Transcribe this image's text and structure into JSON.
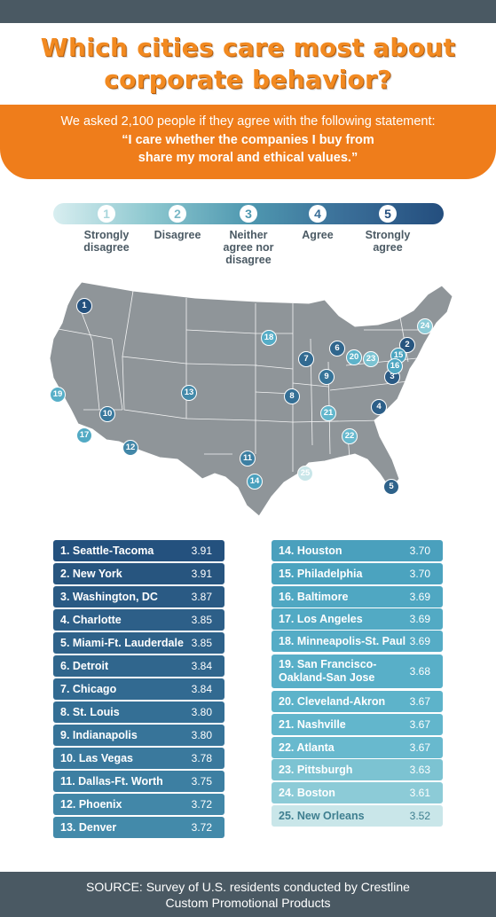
{
  "title_line1": "Which cities care most about",
  "title_line2": "corporate behavior?",
  "banner": {
    "intro": "We asked 2,100 people if they agree with the following statement:",
    "quote_line1": "“I care whether the companies I buy from",
    "quote_line2": "share my moral and ethical values.”"
  },
  "scale": [
    {
      "num": "1",
      "label": "Strongly disagree"
    },
    {
      "num": "2",
      "label": "Disagree"
    },
    {
      "num": "3",
      "label": "Neither agree nor disagree"
    },
    {
      "num": "4",
      "label": "Agree"
    },
    {
      "num": "5",
      "label": "Strongly agree"
    }
  ],
  "rankings": [
    {
      "rank": 1,
      "city": "1. Seattle-Tacoma",
      "score": "3.91",
      "color": "#24517e"
    },
    {
      "rank": 2,
      "city": "2. New York",
      "score": "3.91",
      "color": "#27557f"
    },
    {
      "rank": 3,
      "city": "3. Washington, DC",
      "score": "3.87",
      "color": "#2a5a84"
    },
    {
      "rank": 4,
      "city": "4. Charlotte",
      "score": "3.85",
      "color": "#2d5f88"
    },
    {
      "rank": 5,
      "city": "5. Miami-Ft. Lauderdale",
      "score": "3.85",
      "color": "#2e628a"
    },
    {
      "rank": 6,
      "city": "6. Detroit",
      "score": "3.84",
      "color": "#30668d"
    },
    {
      "rank": 7,
      "city": "7. Chicago",
      "score": "3.84",
      "color": "#326a91"
    },
    {
      "rank": 8,
      "city": "8. St. Louis",
      "score": "3.80",
      "color": "#346f95"
    },
    {
      "rank": 9,
      "city": "9. Indianapolis",
      "score": "3.80",
      "color": "#377499"
    },
    {
      "rank": 10,
      "city": "10. Las Vegas",
      "score": "3.78",
      "color": "#3a799d"
    },
    {
      "rank": 11,
      "city": "11. Dallas-Ft. Worth",
      "score": "3.75",
      "color": "#3d7fa2"
    },
    {
      "rank": 12,
      "city": "12. Phoenix",
      "score": "3.72",
      "color": "#4287a8"
    },
    {
      "rank": 13,
      "city": "13. Denver",
      "score": "3.72",
      "color": "#438aaa"
    },
    {
      "rank": 14,
      "city": "14. Houston",
      "score": "3.70",
      "color": "#4aa0bd"
    },
    {
      "rank": 15,
      "city": "15. Philadelphia",
      "score": "3.70",
      "color": "#4ba3bf"
    },
    {
      "rank": 16,
      "city": "16. Baltimore",
      "score": "3.69",
      "color": "#4fa7c2"
    },
    {
      "rank": 17,
      "city": "17. Los Angeles",
      "score": "3.69",
      "color": "#52aac4"
    },
    {
      "rank": 18,
      "city": "18. Minneapolis-St. Paul",
      "score": "3.69",
      "color": "#55acc6"
    },
    {
      "rank": 19,
      "city": "19. San Francisco-Oakland-San Jose",
      "score": "3.68",
      "color": "#58afc8"
    },
    {
      "rank": 20,
      "city": "20. Cleveland-Akron",
      "score": "3.67",
      "color": "#5db3ca"
    },
    {
      "rank": 21,
      "city": "21. Nashville",
      "score": "3.67",
      "color": "#62b6cc"
    },
    {
      "rank": 22,
      "city": "22. Atlanta",
      "score": "3.67",
      "color": "#68b9ce"
    },
    {
      "rank": 23,
      "city": "23. Pittsburgh",
      "score": "3.63",
      "color": "#7cc3d2"
    },
    {
      "rank": 24,
      "city": "24. Boston",
      "score": "3.61",
      "color": "#8ccbd7"
    },
    {
      "rank": 25,
      "city": "25. New Orleans",
      "score": "3.52",
      "color": "#c9e6e9"
    }
  ],
  "footer": {
    "line1": "SOURCE: Survey of U.S. residents conducted by Crestline",
    "line2": "Custom Promotional Products"
  }
}
